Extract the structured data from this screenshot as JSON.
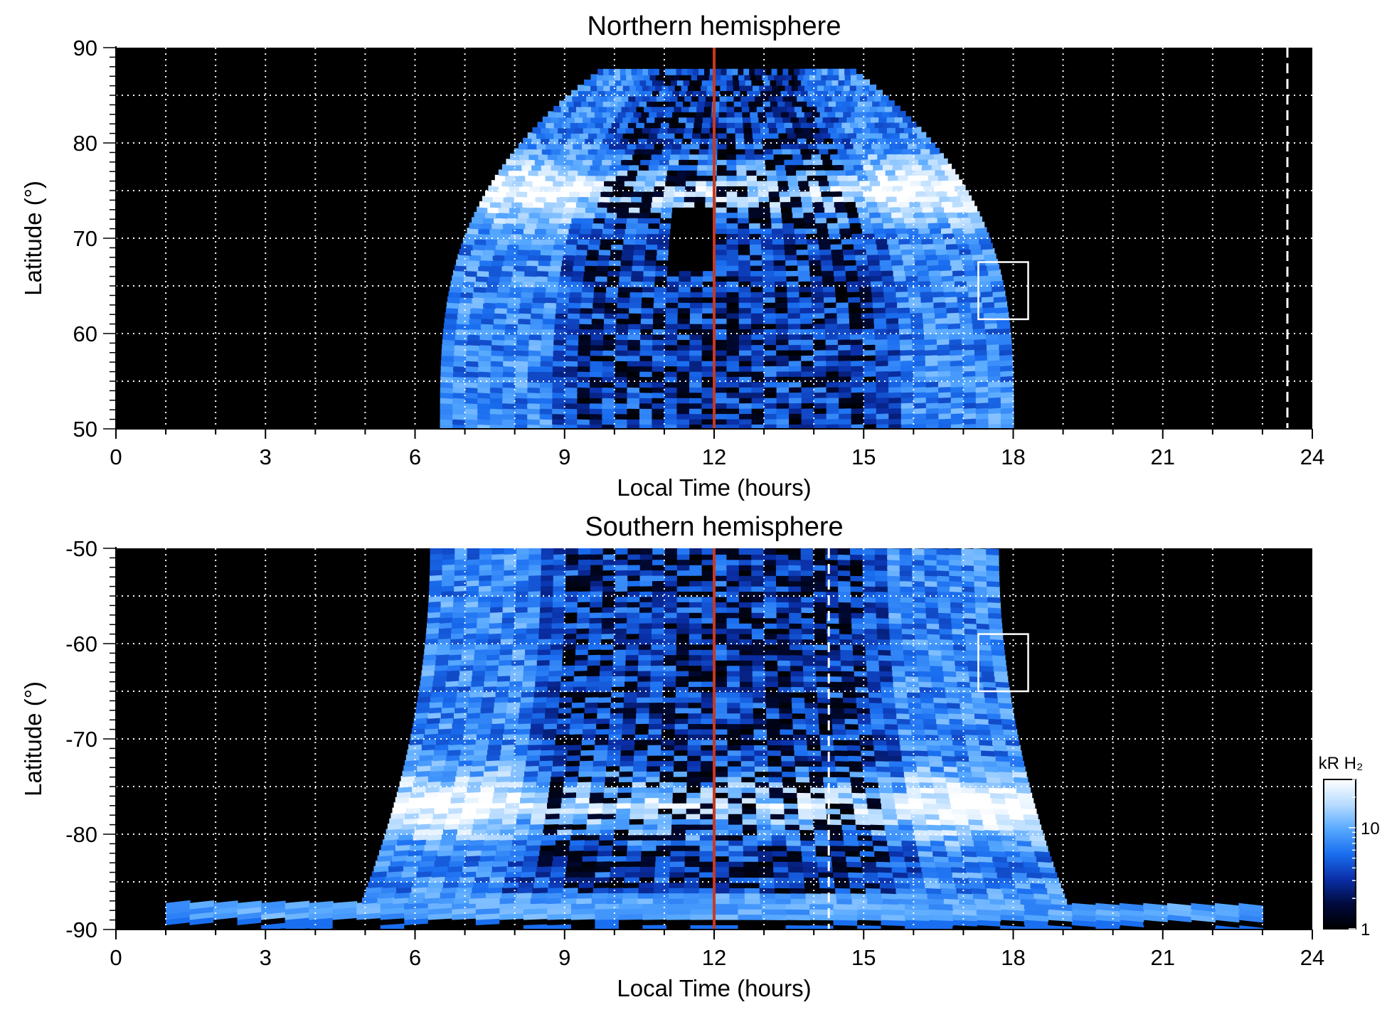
{
  "chart_data": [
    {
      "type": "heatmap",
      "title": "Northern hemisphere",
      "xlabel": "Local Time (hours)",
      "ylabel": "Latitude (°)",
      "xlim": [
        0,
        24
      ],
      "ylim": [
        50,
        90
      ],
      "xticks": [
        "0",
        "3",
        "6",
        "9",
        "12",
        "15",
        "18",
        "21",
        "24"
      ],
      "yticks": [
        "50",
        "60",
        "70",
        "80",
        "90"
      ],
      "grid": true,
      "emission_extent": {
        "lt_min": 6.5,
        "lt_max": 18.0,
        "lat_min": 50,
        "lat_max": 87.5
      },
      "noon_line_lt": 12.0,
      "dashed_line_lt": 23.5,
      "box": {
        "lt": [
          17.3,
          18.3
        ],
        "lat": [
          61.5,
          67.5
        ]
      },
      "bright_arc_lat": 75,
      "dark_region": {
        "lt": [
          11.0,
          12.0
        ],
        "lat": [
          66.5,
          73.5
        ]
      }
    },
    {
      "type": "heatmap",
      "title": "Southern hemisphere",
      "xlabel": "Local Time (hours)",
      "ylabel": "Latitude (°)",
      "xlim": [
        0,
        24
      ],
      "ylim": [
        -90,
        -50
      ],
      "xticks": [
        "0",
        "3",
        "6",
        "9",
        "12",
        "15",
        "18",
        "21",
        "24"
      ],
      "yticks": [
        "-50",
        "-60",
        "-70",
        "-80",
        "-90"
      ],
      "grid": true,
      "emission_extent": {
        "lt_min": 5.0,
        "lt_max": 19.0,
        "lat_min": -90,
        "lat_max": -50
      },
      "noon_line_lt": 12.0,
      "dashed_line_lt": 14.3,
      "box": {
        "lt": [
          17.3,
          18.3
        ],
        "lat": [
          -65.0,
          -59.0
        ]
      },
      "bright_arc_lat": -77,
      "colorbar": {
        "label": "kR H₂",
        "ticks": [
          "10",
          "1"
        ],
        "scale": "log",
        "range": [
          1,
          30
        ],
        "colors": [
          "#000000",
          "#000a3c",
          "#0a2fa8",
          "#1a6ef0",
          "#56a8ff",
          "#b8dcff",
          "#ffffff"
        ]
      }
    }
  ],
  "colors": {
    "noon_line": "#c8391f",
    "grid": "#ffffff",
    "background": "#000000"
  }
}
